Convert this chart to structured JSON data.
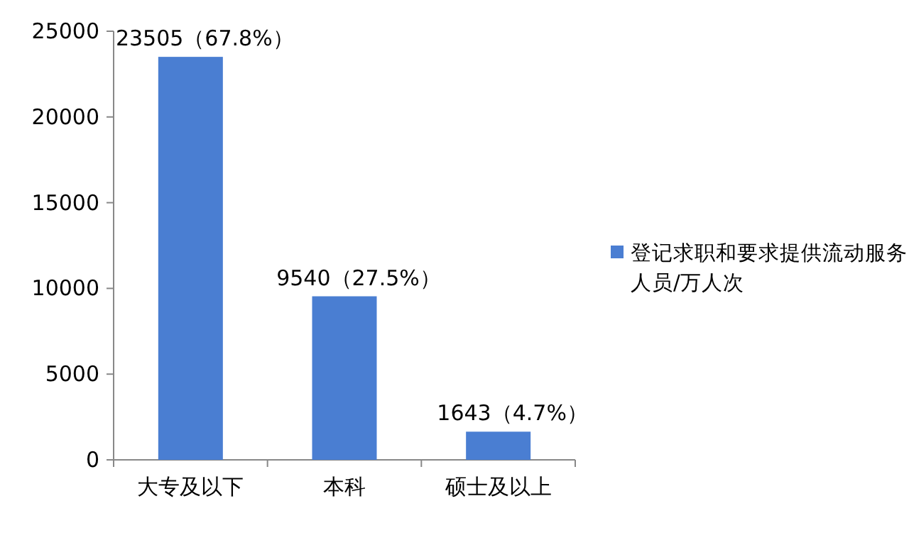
{
  "chart_data": {
    "type": "bar",
    "categories": [
      "大专及以下",
      "本科",
      "硕士及以上"
    ],
    "series": [
      {
        "name": "登记求职和要求提供流动服务人员/万人次",
        "color": "#4a7ed2",
        "values": [
          23505,
          9540,
          1643
        ],
        "value_labels": [
          "23505（67.8%）",
          "9540（27.5%）",
          "1643（4.7%）"
        ]
      }
    ],
    "ylim": [
      0,
      25000
    ],
    "yticks": [
      0,
      5000,
      10000,
      15000,
      20000,
      25000
    ],
    "grid": false,
    "legend": "right"
  }
}
